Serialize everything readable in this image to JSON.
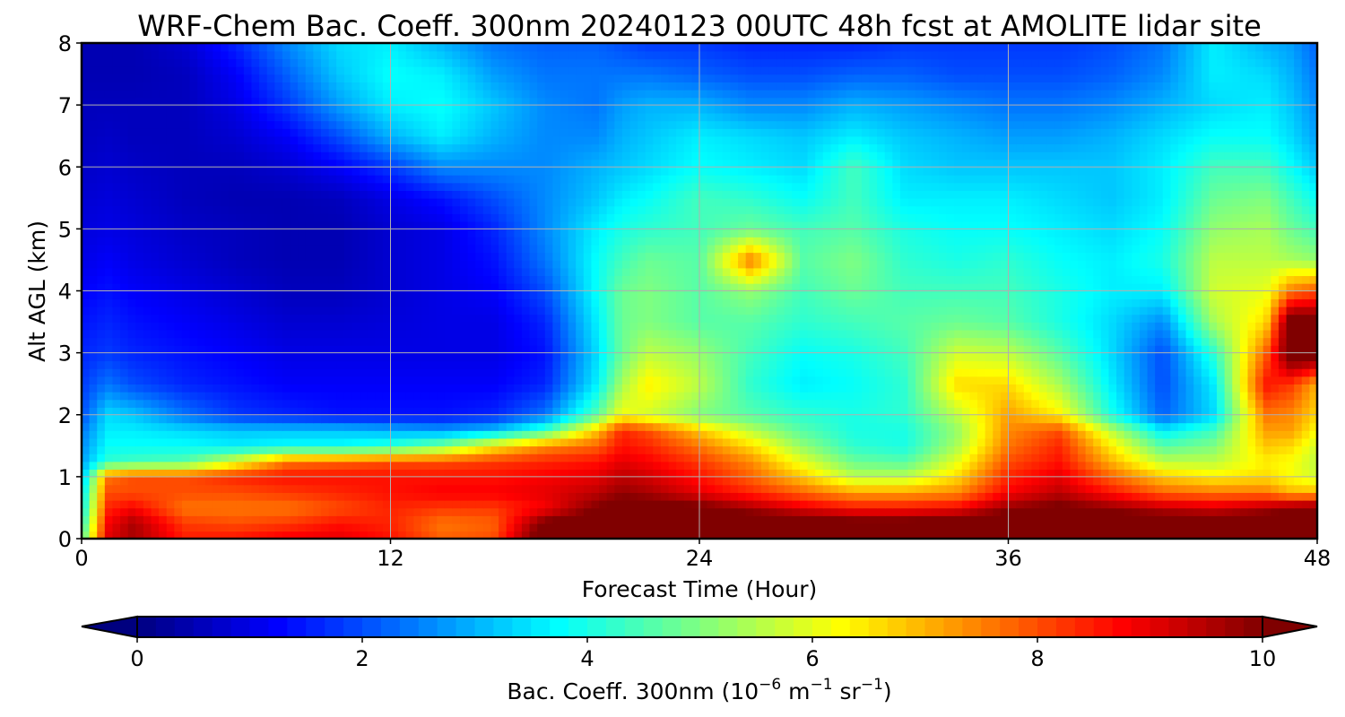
{
  "chart_data": {
    "type": "heatmap",
    "title": "WRF-Chem Bac. Coeff. 300nm  20240123 00UTC 48h fcst at AMOLITE lidar site",
    "xlabel": "Forecast Time (Hour)",
    "ylabel": "Alt AGL (km)",
    "xlim": [
      0,
      48
    ],
    "ylim": [
      0,
      8
    ],
    "xticks": [
      "0",
      "12",
      "24",
      "36",
      "48"
    ],
    "yticks": [
      "0",
      "1",
      "2",
      "3",
      "4",
      "5",
      "6",
      "7",
      "8"
    ],
    "grid": true,
    "colormap": "jet",
    "colorbar": {
      "orientation": "horizontal",
      "placement": "bottom",
      "range": [
        0,
        10
      ],
      "ticks": [
        "0",
        "2",
        "4",
        "6",
        "8",
        "10"
      ],
      "label_main": "Bac. Coeff. 300nm  (10",
      "label_exp1": "−6",
      "label_mid": " m",
      "label_exp2": "−1",
      "label_mid2": " sr",
      "label_exp3": "−1",
      "label_end": ")",
      "extend": "both"
    },
    "x": [
      0,
      1,
      2,
      4,
      6,
      8,
      10,
      12,
      14,
      16,
      18,
      20,
      21,
      22,
      24,
      26,
      28,
      30,
      32,
      34,
      36,
      38,
      40,
      42,
      44,
      46,
      47,
      48
    ],
    "y": [
      0,
      0.25,
      0.5,
      0.75,
      1,
      1.25,
      1.5,
      1.75,
      2,
      2.5,
      3,
      3.5,
      4,
      4.5,
      5,
      5.5,
      6,
      6.5,
      7,
      7.5,
      8
    ],
    "values": [
      [
        4.5,
        9.0,
        9.6,
        8.5,
        8.6,
        8.9,
        9.0,
        8.6,
        7.8,
        8.0,
        10.6,
        10.8,
        11.0,
        11.0,
        11.0,
        11.0,
        11.0,
        11.0,
        11.0,
        11.0,
        11.2,
        11.0,
        11.2,
        11.2,
        11.2,
        11.0,
        11.0,
        11.0
      ],
      [
        4.0,
        8.8,
        9.6,
        8.2,
        8.0,
        8.2,
        8.6,
        8.4,
        7.6,
        7.8,
        10.2,
        10.6,
        10.8,
        10.8,
        10.8,
        10.8,
        10.6,
        10.4,
        10.4,
        10.6,
        10.8,
        10.8,
        10.8,
        10.6,
        10.4,
        10.6,
        10.6,
        10.6
      ],
      [
        3.6,
        8.4,
        8.8,
        7.6,
        7.6,
        7.6,
        8.0,
        8.4,
        8.2,
        8.2,
        8.8,
        10.0,
        10.4,
        10.4,
        10.2,
        9.6,
        9.0,
        8.6,
        8.6,
        8.8,
        9.8,
        10.2,
        9.8,
        9.4,
        9.2,
        9.6,
        10.0,
        10.2
      ],
      [
        3.4,
        8.0,
        8.0,
        8.0,
        8.0,
        8.2,
        8.4,
        8.6,
        8.8,
        8.8,
        9.0,
        9.4,
        9.8,
        9.6,
        9.0,
        8.4,
        7.8,
        7.2,
        7.2,
        7.4,
        8.8,
        9.4,
        8.6,
        7.8,
        7.6,
        7.6,
        7.0,
        7.0
      ],
      [
        3.0,
        7.6,
        8.0,
        8.0,
        8.4,
        8.6,
        8.6,
        8.6,
        8.6,
        8.6,
        8.8,
        9.0,
        9.4,
        9.2,
        8.6,
        7.8,
        6.8,
        5.6,
        5.6,
        6.6,
        8.4,
        9.0,
        7.8,
        6.8,
        6.4,
        6.6,
        6.2,
        5.8
      ],
      [
        2.8,
        4.2,
        4.4,
        4.6,
        6.0,
        7.6,
        7.8,
        8.0,
        8.0,
        8.2,
        8.4,
        8.6,
        9.0,
        8.8,
        8.2,
        7.4,
        6.0,
        4.8,
        4.6,
        6.0,
        8.0,
        8.6,
        7.0,
        5.6,
        5.6,
        6.4,
        6.2,
        5.6
      ],
      [
        2.6,
        3.8,
        3.8,
        3.8,
        3.6,
        3.8,
        3.8,
        4.2,
        5.0,
        6.4,
        7.4,
        7.8,
        8.6,
        8.4,
        7.6,
        6.6,
        5.2,
        4.2,
        4.0,
        5.4,
        7.6,
        8.4,
        6.4,
        4.6,
        5.0,
        6.8,
        6.6,
        5.8
      ],
      [
        2.4,
        3.6,
        3.6,
        3.4,
        3.2,
        3.2,
        3.2,
        3.0,
        2.8,
        3.2,
        4.4,
        6.8,
        8.4,
        8.0,
        6.8,
        5.6,
        4.6,
        4.0,
        4.0,
        5.2,
        7.4,
        8.0,
        5.6,
        3.6,
        4.4,
        7.2,
        7.2,
        6.2
      ],
      [
        2.0,
        3.4,
        3.2,
        2.4,
        1.8,
        1.6,
        1.4,
        1.4,
        1.4,
        1.6,
        2.4,
        4.6,
        6.2,
        5.8,
        5.0,
        4.6,
        4.2,
        4.0,
        4.2,
        5.6,
        7.2,
        6.4,
        4.0,
        2.2,
        3.4,
        7.6,
        7.4,
        6.6
      ],
      [
        1.8,
        2.4,
        2.0,
        1.6,
        1.4,
        1.2,
        1.2,
        1.2,
        1.2,
        1.2,
        1.6,
        3.6,
        5.4,
        6.4,
        5.6,
        4.2,
        3.6,
        3.8,
        4.2,
        6.6,
        6.6,
        5.4,
        3.6,
        2.0,
        3.6,
        8.6,
        8.2,
        7.0
      ],
      [
        1.6,
        1.8,
        1.6,
        1.4,
        1.2,
        1.0,
        1.0,
        1.0,
        1.0,
        1.0,
        1.4,
        3.4,
        4.8,
        5.6,
        5.2,
        4.4,
        3.8,
        4.0,
        4.4,
        5.8,
        5.6,
        4.6,
        3.4,
        2.0,
        4.2,
        7.8,
        10.6,
        10.6
      ],
      [
        1.4,
        1.6,
        1.4,
        1.2,
        1.0,
        0.8,
        0.8,
        0.9,
        1.0,
        1.0,
        1.6,
        3.6,
        4.8,
        5.0,
        4.6,
        4.6,
        4.2,
        4.4,
        4.6,
        4.8,
        4.6,
        4.0,
        3.4,
        2.6,
        5.4,
        6.6,
        10.6,
        10.4
      ],
      [
        1.2,
        1.4,
        1.2,
        1.0,
        0.8,
        0.6,
        0.6,
        0.8,
        1.0,
        1.2,
        2.0,
        3.8,
        4.8,
        5.0,
        4.6,
        5.2,
        4.4,
        4.8,
        4.4,
        4.4,
        4.4,
        4.0,
        3.6,
        3.6,
        5.8,
        6.0,
        7.6,
        8.0
      ],
      [
        1.0,
        1.2,
        1.0,
        0.8,
        0.6,
        0.5,
        0.5,
        0.8,
        1.0,
        1.4,
        2.4,
        3.8,
        4.4,
        4.8,
        4.6,
        7.6,
        4.6,
        5.0,
        4.2,
        4.0,
        4.2,
        3.8,
        3.6,
        4.0,
        5.6,
        5.6,
        5.4,
        5.2
      ],
      [
        0.9,
        1.0,
        0.9,
        0.7,
        0.6,
        0.5,
        0.5,
        0.8,
        1.0,
        1.6,
        2.6,
        3.6,
        4.0,
        4.2,
        4.4,
        4.8,
        4.4,
        4.6,
        4.0,
        3.8,
        3.8,
        3.6,
        3.4,
        3.8,
        5.2,
        5.4,
        4.8,
        4.4
      ],
      [
        0.8,
        0.9,
        0.8,
        0.6,
        0.5,
        0.5,
        0.6,
        1.0,
        1.4,
        2.0,
        2.6,
        3.2,
        3.6,
        3.8,
        4.4,
        4.2,
        3.8,
        4.4,
        3.6,
        3.6,
        3.6,
        3.4,
        3.2,
        3.6,
        4.8,
        5.0,
        4.4,
        3.8
      ],
      [
        0.7,
        0.8,
        0.7,
        0.6,
        0.6,
        0.8,
        1.2,
        1.8,
        2.6,
        2.6,
        2.6,
        3.0,
        3.2,
        3.4,
        3.8,
        3.6,
        3.4,
        4.4,
        3.4,
        3.2,
        3.2,
        3.2,
        3.2,
        3.6,
        4.4,
        4.4,
        3.8,
        3.2
      ],
      [
        0.6,
        0.7,
        0.6,
        0.6,
        0.8,
        1.2,
        2.0,
        3.0,
        3.6,
        3.0,
        2.6,
        2.6,
        3.0,
        3.2,
        3.6,
        3.4,
        3.2,
        3.6,
        3.2,
        3.0,
        2.8,
        2.8,
        3.0,
        3.4,
        3.8,
        3.8,
        3.4,
        2.8
      ],
      [
        0.6,
        0.6,
        0.6,
        0.6,
        1.0,
        1.8,
        2.8,
        3.6,
        3.8,
        3.2,
        2.6,
        2.4,
        2.8,
        3.0,
        3.0,
        2.6,
        2.6,
        3.0,
        2.8,
        2.6,
        2.4,
        2.4,
        2.6,
        3.0,
        3.4,
        3.6,
        3.2,
        2.6
      ],
      [
        0.5,
        0.5,
        0.5,
        0.6,
        1.2,
        2.2,
        3.2,
        3.8,
        3.6,
        2.8,
        2.4,
        2.4,
        2.4,
        2.4,
        2.2,
        2.0,
        2.0,
        2.2,
        2.2,
        2.0,
        2.0,
        2.0,
        2.2,
        2.6,
        3.6,
        3.4,
        3.0,
        2.4
      ],
      [
        0.5,
        0.5,
        0.5,
        0.8,
        1.6,
        2.6,
        3.4,
        3.6,
        3.0,
        2.4,
        2.2,
        2.2,
        2.0,
        1.8,
        1.8,
        1.6,
        1.6,
        1.6,
        1.8,
        1.8,
        1.8,
        1.8,
        2.0,
        2.4,
        3.6,
        3.0,
        2.8,
        2.2
      ]
    ]
  }
}
